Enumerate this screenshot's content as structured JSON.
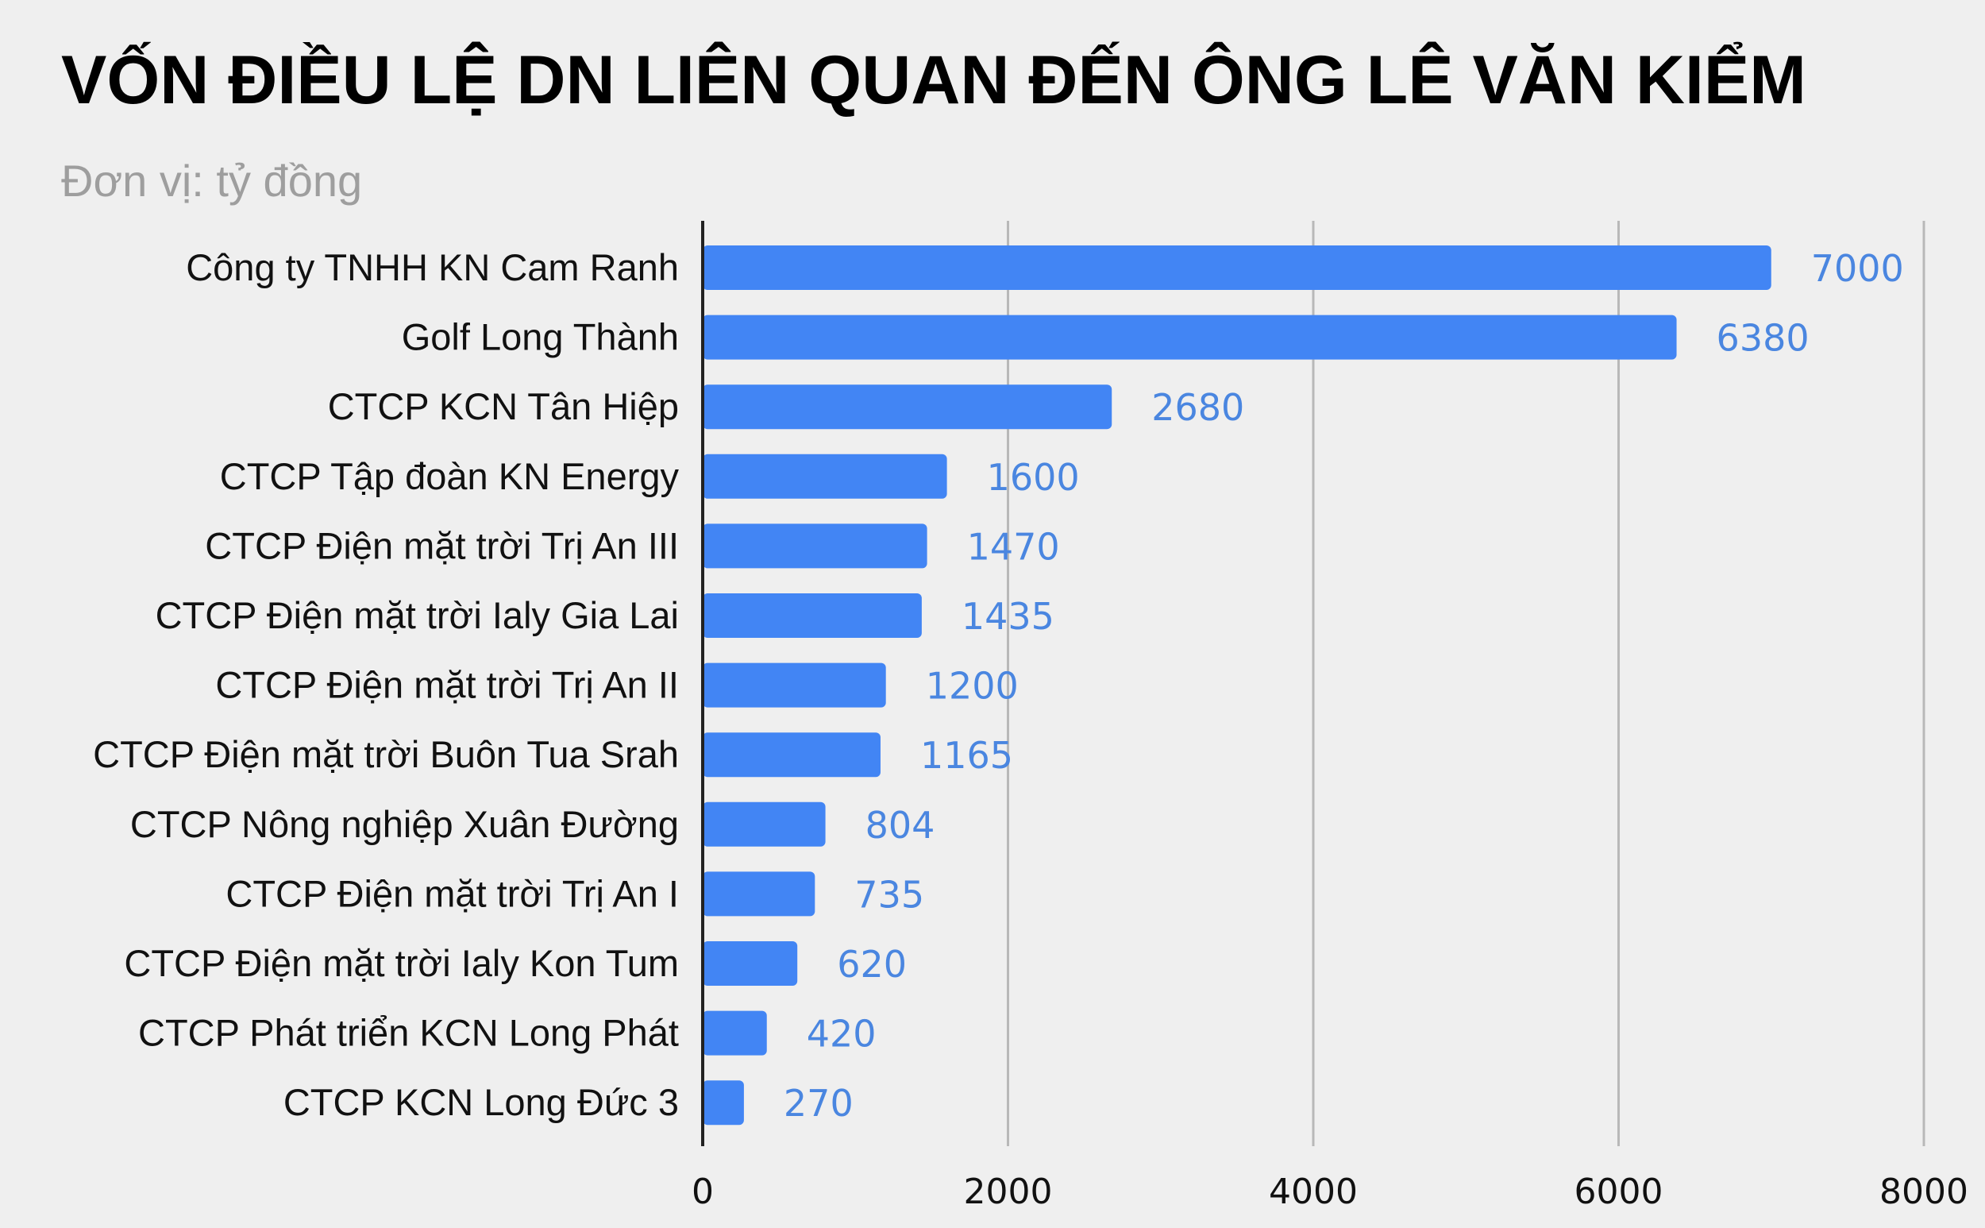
{
  "chart_data": {
    "type": "bar",
    "orientation": "horizontal",
    "title": "VỐN ĐIỀU LỆ DN LIÊN QUAN ĐẾN ÔNG LÊ VĂN KIỂM",
    "subtitle": "Đơn vị: tỷ đồng",
    "categories": [
      "Công ty TNHH KN Cam Ranh",
      "Golf Long Thành",
      "CTCP KCN Tân Hiệp",
      "CTCP Tập đoàn KN Energy",
      "CTCP Điện mặt trời Trị An III",
      "CTCP Điện mặt trời Ialy Gia Lai",
      "CTCP Điện mặt trời Trị An II",
      "CTCP Điện mặt trời Buôn Tua Srah",
      "CTCP Nông nghiệp Xuân Đường",
      "CTCP Điện mặt trời Trị An I",
      "CTCP Điện mặt trời Ialy Kon Tum",
      "CTCP Phát triển KCN Long Phát",
      "CTCP KCN Long Đức 3"
    ],
    "values": [
      7000,
      6380,
      2680,
      1600,
      1470,
      1435,
      1200,
      1165,
      804,
      735,
      620,
      420,
      270
    ],
    "xlim": [
      0,
      8000
    ],
    "xticks": [
      "0",
      "2000",
      "4000",
      "6000",
      "8000"
    ],
    "xticks_values": [
      0,
      2000,
      4000,
      6000,
      8000
    ],
    "grid": "vertical",
    "legend": "none",
    "data_labels": "outside-end",
    "colors": {
      "bar": "#4285f4",
      "data_label": "#4a86e0",
      "grid": "#b8b8b8",
      "axis": "#222222",
      "title": "#000000",
      "subtitle": "#9e9e9e",
      "background": "#efefef"
    }
  }
}
